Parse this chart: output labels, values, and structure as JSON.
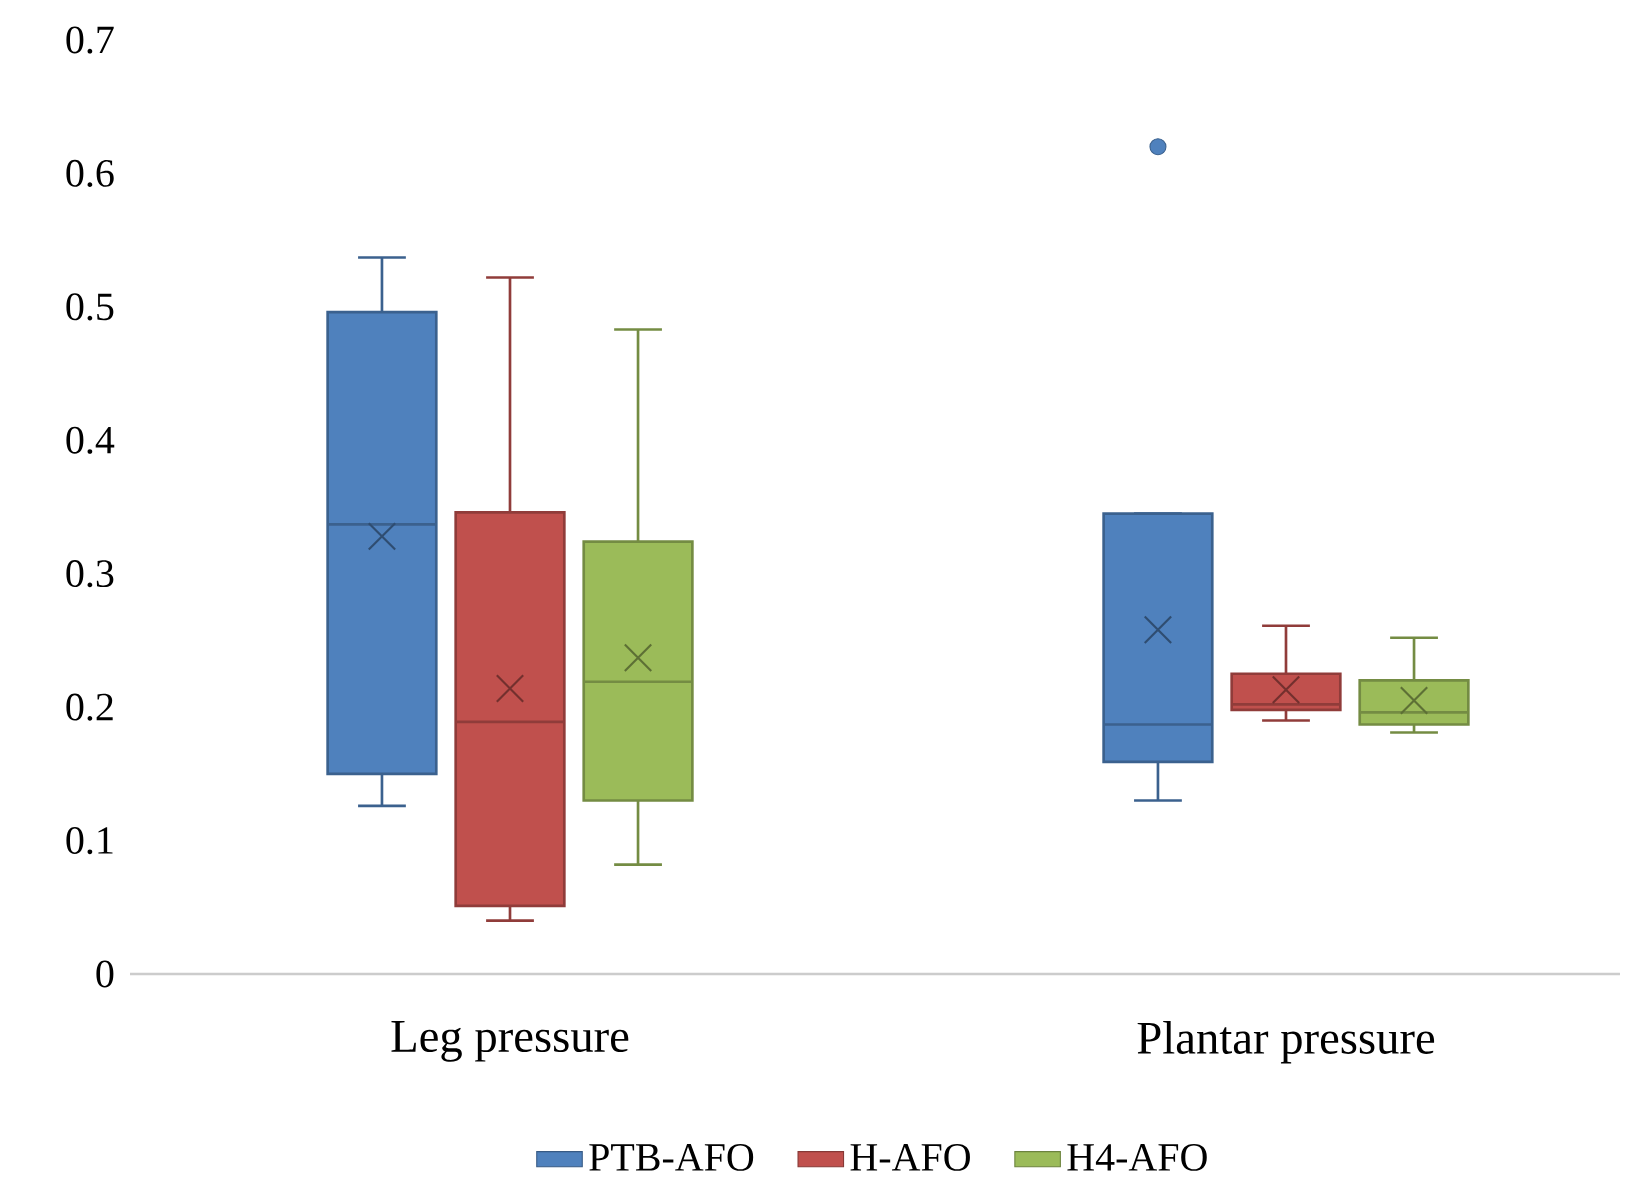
{
  "chart_data": {
    "type": "box",
    "categories": [
      "Leg pressure",
      "Plantar pressure"
    ],
    "series": [
      {
        "name": "PTB-AFO",
        "color": "#4f81bd",
        "boxes": [
          {
            "low": 0.126,
            "q1": 0.15,
            "median": 0.337,
            "q3": 0.496,
            "high": 0.537,
            "mean": 0.328
          },
          {
            "low": 0.13,
            "q1": 0.159,
            "median": 0.187,
            "q3": 0.345,
            "high": 0.345,
            "mean": 0.258,
            "outliers": [
              0.62
            ]
          }
        ]
      },
      {
        "name": "H-AFO",
        "color": "#c0504d",
        "boxes": [
          {
            "low": 0.04,
            "q1": 0.051,
            "median": 0.189,
            "q3": 0.346,
            "high": 0.522,
            "mean": 0.214
          },
          {
            "low": 0.19,
            "q1": 0.198,
            "median": 0.202,
            "q3": 0.225,
            "high": 0.261,
            "mean": 0.213
          }
        ]
      },
      {
        "name": "H4-AFO",
        "color": "#9bbb59",
        "boxes": [
          {
            "low": 0.082,
            "q1": 0.13,
            "median": 0.219,
            "q3": 0.324,
            "high": 0.483,
            "mean": 0.237
          },
          {
            "low": 0.181,
            "q1": 0.187,
            "median": 0.196,
            "q3": 0.22,
            "high": 0.252,
            "mean": 0.205
          }
        ]
      }
    ],
    "ylim": [
      0,
      0.7
    ],
    "yticks": [
      0,
      0.1,
      0.2,
      0.3,
      0.4,
      0.5,
      0.6,
      0.7
    ],
    "legend": "bottom"
  }
}
